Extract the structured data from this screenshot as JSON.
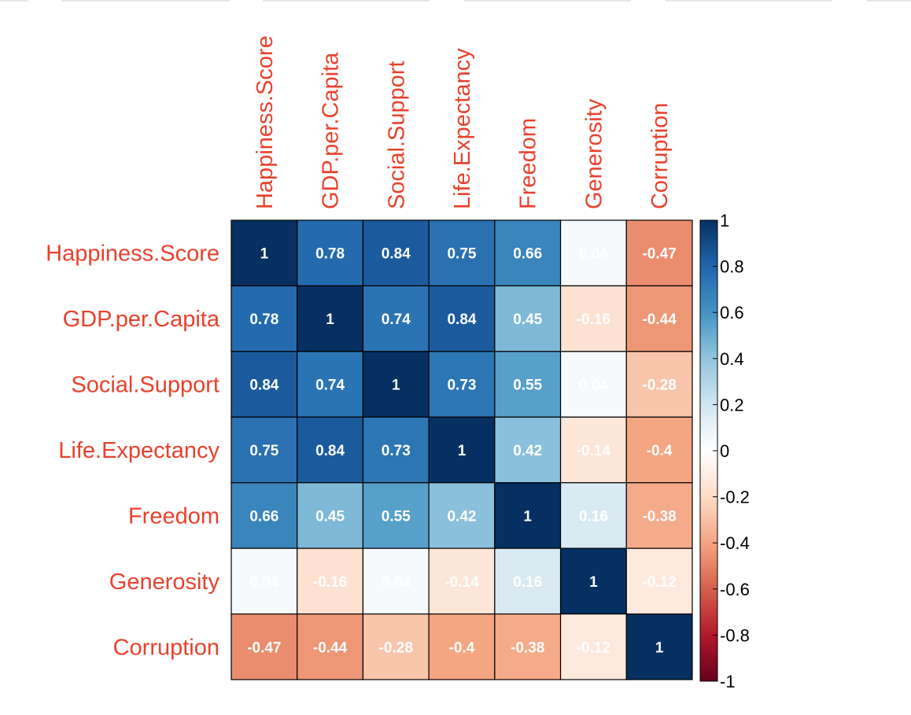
{
  "chart_data": {
    "type": "heatmap",
    "variables": [
      "Happiness.Score",
      "GDP.per.Capita",
      "Social.Support",
      "Life.Expectancy",
      "Freedom",
      "Generosity",
      "Corruption"
    ],
    "matrix": [
      [
        1,
        0.78,
        0.84,
        0.75,
        0.66,
        0.04,
        -0.47
      ],
      [
        0.78,
        1,
        0.74,
        0.84,
        0.45,
        -0.16,
        -0.44
      ],
      [
        0.84,
        0.74,
        1,
        0.73,
        0.55,
        0.04,
        -0.28
      ],
      [
        0.75,
        0.84,
        0.73,
        1,
        0.42,
        -0.14,
        -0.4
      ],
      [
        0.66,
        0.45,
        0.55,
        0.42,
        1,
        0.16,
        -0.38
      ],
      [
        0.04,
        -0.16,
        0.04,
        -0.14,
        0.16,
        1,
        -0.12
      ],
      [
        -0.47,
        -0.44,
        -0.28,
        -0.4,
        -0.38,
        -0.12,
        1
      ]
    ],
    "colorbar": {
      "range": [
        -1,
        1
      ],
      "ticks": [
        "1",
        "0.8",
        "0.6",
        "0.4",
        "0.2",
        "0",
        "-0.2",
        "-0.4",
        "-0.6",
        "-0.8",
        "-1"
      ]
    },
    "colors": {
      "label": "#e8412d",
      "cell_text": "#ffffff",
      "grid_line": "#000000",
      "scale": [
        "#67001f",
        "#b2182b",
        "#d6604d",
        "#f4a582",
        "#fddbc7",
        "#ffffff",
        "#d1e5f0",
        "#92c5de",
        "#4393c3",
        "#2166ac",
        "#053061"
      ]
    }
  }
}
